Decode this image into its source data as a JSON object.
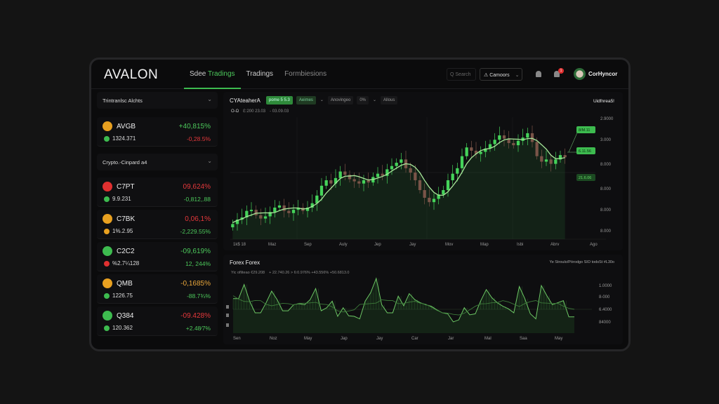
{
  "app": {
    "logo": "AVALON"
  },
  "nav": {
    "tab1_a": "Sdee",
    "tab1_b": "Tradings",
    "tab2": "Tradings",
    "tab3": "Formbiesions"
  },
  "header": {
    "search_placeholder": "Q Search",
    "select": "⚠ Camoors",
    "select_chev": "⌄",
    "notif_count": "1",
    "user": "CorHyncor"
  },
  "sidebar": {
    "sections": [
      {
        "label": "Trintranlsc Alchts"
      },
      {
        "label": "Crypto.-Cinpard a4"
      }
    ],
    "items": [
      {
        "symbol": "AVGB",
        "change": "+40,815%",
        "change_color": "g",
        "value": "1324.371",
        "change2": "-0,28.5%",
        "change2_color": "r",
        "icon_color": "#e8a020",
        "dot_color": "#3dbb4f"
      },
      {
        "symbol": "C7PT",
        "change": "09,624%",
        "change_color": "r",
        "value": "9.9.231",
        "change2": "-0,812,.88",
        "change2_color": "g",
        "icon_color": "#e03030",
        "dot_color": "#3dbb4f"
      },
      {
        "symbol": "C7BK",
        "change": "0,06,1%",
        "change_color": "r",
        "value": "1%.2.95",
        "change2": "-2,229.55%",
        "change2_color": "g",
        "icon_color": "#e8a020",
        "dot_color": "#e8a020"
      },
      {
        "symbol": "C2C2",
        "change": "-09,619%",
        "change_color": "g",
        "value": "%2.7¼128",
        "change2": "12, 244%",
        "change2_color": "g",
        "icon_color": "#3dbb4f",
        "dot_color": "#e03030"
      },
      {
        "symbol": "QMB",
        "change": "-0,1685%",
        "change_color": "o",
        "value": "1226.75",
        "change2": "-88.7¾%",
        "change2_color": "g",
        "icon_color": "#e8a020",
        "dot_color": "#3dbb4f"
      },
      {
        "symbol": "Q384",
        "change": "-09.428%",
        "change_color": "r",
        "value": "120.362",
        "change2": "+2.48⁄7%",
        "change2_color": "g",
        "icon_color": "#3dbb4f",
        "dot_color": "#3dbb4f"
      }
    ]
  },
  "main_chart": {
    "title": "CYAteaherA",
    "chip1": "pome 5 5.3",
    "chip2": "Aeimes",
    "chip3": "Anovingeo",
    "chip4": "0%",
    "chip5": "Allous",
    "right_label": "Uidfnrea5!",
    "ohlc_label": "O-Ω",
    "ohlc_val1": "Ɛ:200 23.03",
    "ohlc_val2": "- 03.09.03",
    "y_labels": [
      "2.9000",
      "3.000",
      "8.000",
      "8.000",
      "8.000",
      "8.000"
    ],
    "x_labels": [
      "1k$ 18",
      "Maz",
      "Sep",
      "Auly",
      "Jep",
      "Jay",
      "Mov",
      "Map",
      "Isbi",
      "Abrv",
      "Ago"
    ],
    "price_tags": [
      "8/M.11",
      "6.11.56",
      "21.6.06"
    ],
    "closes": [
      10,
      14,
      16,
      22,
      23,
      18,
      15,
      17,
      21,
      25,
      27,
      22,
      20,
      23,
      25,
      22,
      25,
      29,
      36,
      45,
      50,
      47,
      52,
      58,
      55,
      51,
      49,
      47,
      50,
      48,
      53,
      56,
      54,
      60,
      63,
      66,
      69,
      61,
      57,
      50,
      41,
      34,
      30,
      33,
      37,
      41,
      50,
      56,
      61,
      72,
      80,
      77,
      74,
      76,
      79,
      83,
      87,
      91,
      88,
      84,
      82,
      86,
      89,
      93,
      85,
      72,
      67,
      69,
      65,
      69,
      73,
      71
    ],
    "colors": {
      "up": "#45d35a",
      "down": "#7a5448",
      "ma": "#a8e79a"
    }
  },
  "forex": {
    "title": "Forex Forex",
    "right_label": "Ye Stroulo/Pórodgo SIO todsSt #L30o",
    "stats_a": "Yic ofliteao €29.208",
    "stats_b": "+ 22.740.26 > 6:0.976% +43.556% +50.6813.0",
    "y_labels": [
      "1.0000",
      "8-000",
      "6.4000",
      "84000"
    ],
    "x_labels": [
      "Sen",
      "Noz",
      "May",
      "Jap",
      "Jay",
      "Car",
      "Jar",
      "Mal",
      "Saa",
      "May"
    ],
    "values": [
      60,
      60,
      88,
      55,
      32,
      32,
      52,
      75,
      58,
      36,
      36,
      48,
      50,
      48,
      58,
      80,
      36,
      42,
      55,
      25,
      42,
      26,
      25,
      20,
      55,
      72,
      100,
      48,
      32,
      32,
      65,
      46,
      70,
      58,
      52,
      48,
      45,
      38,
      32,
      30,
      14,
      18,
      42,
      28,
      30,
      56,
      78,
      62,
      52,
      45,
      40,
      32,
      84,
      60,
      30,
      20,
      86,
      66,
      48,
      52,
      56,
      24,
      24
    ]
  }
}
